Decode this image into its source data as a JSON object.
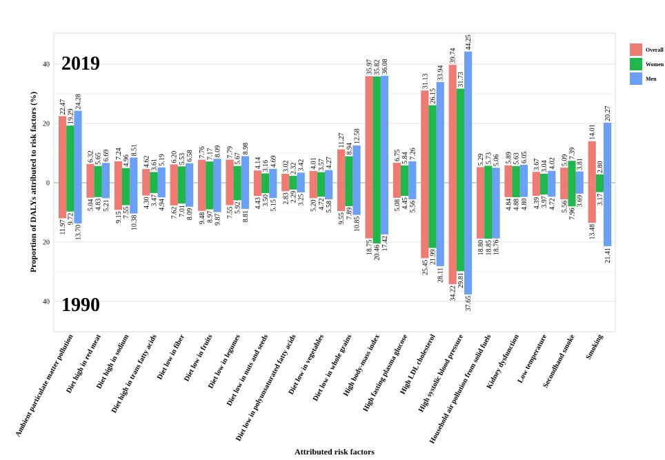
{
  "chart_data": {
    "type": "bar",
    "title_top": "2019",
    "title_bottom": "1990",
    "xlabel": "Attributed risk factors",
    "ylabel": "Proportion of DALYs attributed to risk factors (%)",
    "yticks": [
      "40",
      "20",
      "0",
      "20",
      "40"
    ],
    "ylim": [
      -50,
      50
    ],
    "grid": true,
    "legend_position": "top-right",
    "colors": {
      "Overall": "#f07b72",
      "Women": "#1eb84a",
      "Men": "#6aa0f5"
    },
    "categories": [
      "Ambient particulate matter pollution",
      "Diet high in red meat",
      "Diet high in sodium",
      "Diet high in trans fatty acids",
      "Diet low in fiber",
      "Diet low in fruits",
      "Diet low in legumes",
      "Diet low in nuts and seeds",
      "Diet low in polyunsaturated fatty acids",
      "Diet low in vegetables",
      "Diet low in whole grains",
      "High body-mass index",
      "High fasting plasma glucose",
      "High LDL cholesterol",
      "High systolic blood pressure",
      "Household air pollution from solid fuels",
      "Kidney dysfunction",
      "Low temperature",
      "Secondhand smoke",
      "Smoking"
    ],
    "series": [
      {
        "name": "Overall",
        "values_2019": [
          22.47,
          6.32,
          7.24,
          4.62,
          6.2,
          7.76,
          7.79,
          4.14,
          3.02,
          4.01,
          11.27,
          35.97,
          6.75,
          31.13,
          39.74,
          5.29,
          5.89,
          3.67,
          5.09,
          14.01
        ],
        "values_1990": [
          11.97,
          5.04,
          9.15,
          4.3,
          7.62,
          9.48,
          7.55,
          4.43,
          2.83,
          5.2,
          9.55,
          18.75,
          5.08,
          25.45,
          34.22,
          18.8,
          4.84,
          4.39,
          5.56,
          13.48
        ]
      },
      {
        "name": "Women",
        "values_2019": [
          19.29,
          5.65,
          4.96,
          3.61,
          5.53,
          7.17,
          5.67,
          3.16,
          2.32,
          3.57,
          8.94,
          35.82,
          5.84,
          26.15,
          31.73,
          5.73,
          5.63,
          3.04,
          7.39,
          2.8
        ],
        "values_1990": [
          9.72,
          4.83,
          7.55,
          3.47,
          7.01,
          8.97,
          5.92,
          3.5,
          2.29,
          4.72,
          7.89,
          20.46,
          4.45,
          21.99,
          29.81,
          18.85,
          4.88,
          3.97,
          7.96,
          3.17
        ]
      },
      {
        "name": "Men",
        "values_2019": [
          24.28,
          6.69,
          8.51,
          5.19,
          6.58,
          8.09,
          8.98,
          4.69,
          3.42,
          4.27,
          12.58,
          36.08,
          7.26,
          33.94,
          44.25,
          5.06,
          6.05,
          4.02,
          3.81,
          20.27
        ],
        "values_1990": [
          13.7,
          5.21,
          10.38,
          4.94,
          8.09,
          9.87,
          8.81,
          5.15,
          3.25,
          5.58,
          10.85,
          17.42,
          5.56,
          28.11,
          37.65,
          18.76,
          4.8,
          4.72,
          3.69,
          21.41
        ]
      }
    ],
    "labels_2019": [
      [
        "22.47",
        "19.29",
        "24.28"
      ],
      [
        "6.32",
        "5.65",
        "6.69"
      ],
      [
        "7.24",
        "4.96",
        "8.51"
      ],
      [
        "4.62",
        "3.61",
        "5.19"
      ],
      [
        "6.20",
        "5.53",
        "6.58"
      ],
      [
        "7.76",
        "7.17",
        "8.09"
      ],
      [
        "7.79",
        "5.67",
        "8.98"
      ],
      [
        "4.14",
        "3.16",
        "4.69"
      ],
      [
        "3.02",
        "2.32",
        "3.42"
      ],
      [
        "4.01",
        "3.57",
        "4.27"
      ],
      [
        "11.27",
        "8.94",
        "12.58"
      ],
      [
        "35.97",
        "35.82",
        "36.08"
      ],
      [
        "6.75",
        "5.84",
        "7.26"
      ],
      [
        "31.13",
        "26.15",
        "33.94"
      ],
      [
        "39.74",
        "31.73",
        "44.25"
      ],
      [
        "5.29",
        "5.73",
        "5.06"
      ],
      [
        "5.89",
        "5.63",
        "6.05"
      ],
      [
        "3.67",
        "3.04",
        "4.02"
      ],
      [
        "5.09",
        "7.39",
        "3.81"
      ],
      [
        "14.01",
        "2.80",
        "20.27"
      ]
    ],
    "labels_1990": [
      [
        "11.97",
        "9.72",
        "13.70"
      ],
      [
        "5.04",
        "4.83",
        "5.21"
      ],
      [
        "9.15",
        "7.55",
        "10.38"
      ],
      [
        "4.30",
        "3.47",
        "4.94"
      ],
      [
        "7.62",
        "7.01",
        "8.09"
      ],
      [
        "9.48",
        "8.97",
        "9.87"
      ],
      [
        "7.55",
        "5.92",
        "8.81"
      ],
      [
        "4.43",
        "3.50",
        "5.15"
      ],
      [
        "2.83",
        "2.29",
        "3.25"
      ],
      [
        "5.20",
        "4.72",
        "5.58"
      ],
      [
        "9.55",
        "7.89",
        "10.85"
      ],
      [
        "18.75",
        "20.46",
        "17.42"
      ],
      [
        "5.08",
        "4.45",
        "5.56"
      ],
      [
        "25.45",
        "21.99",
        "28.11"
      ],
      [
        "34.22",
        "29.81",
        "37.65"
      ],
      [
        "18.80",
        "18.85",
        "18.76"
      ],
      [
        "4.84",
        "4.88",
        "4.80"
      ],
      [
        "4.39",
        "3.97",
        "4.72"
      ],
      [
        "5.56",
        "7.96",
        "3.69"
      ],
      [
        "13.48",
        "3.17",
        "21.41"
      ]
    ]
  }
}
